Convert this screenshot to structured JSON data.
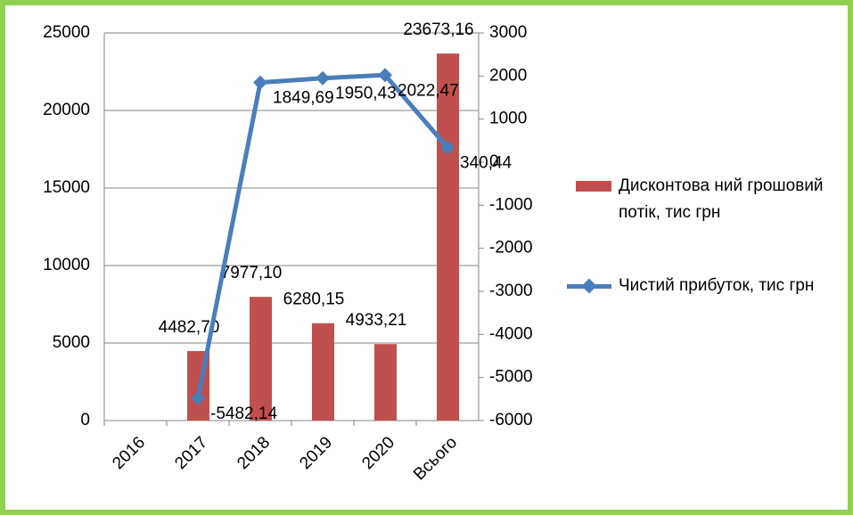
{
  "chart_data": {
    "type": "bar+line",
    "categories": [
      "2016",
      "2017",
      "2018",
      "2019",
      "2020",
      "Всього"
    ],
    "series": [
      {
        "name": "Дисконтова ний грошовий потік, тис грн",
        "type": "bar",
        "color": "#c0504d",
        "values": [
          null,
          4482.7,
          7977.1,
          6280.15,
          4933.21,
          23673.16
        ],
        "value_labels": [
          null,
          "4482,70",
          "7977,10",
          "6280,15",
          "4933,21",
          "23673,16"
        ]
      },
      {
        "name": "Чистий прибуток, тис грн",
        "type": "line",
        "axis": "y2",
        "color": "#4a7ebb",
        "values": [
          null,
          -5482.14,
          1849.69,
          1950.43,
          2022.47,
          340.44
        ],
        "value_labels": [
          null,
          "-5482,14",
          "1849,69",
          "1950,43",
          "2022,47",
          "340,44"
        ]
      }
    ],
    "ylim": [
      0,
      25000
    ],
    "yticks": [
      0,
      5000,
      10000,
      15000,
      20000,
      25000
    ],
    "y2lim": [
      -6000,
      3000
    ],
    "y2ticks": [
      -6000,
      -5000,
      -4000,
      -3000,
      -2000,
      -1000,
      0,
      1000,
      2000,
      3000
    ],
    "grid": true,
    "legend": "right"
  }
}
